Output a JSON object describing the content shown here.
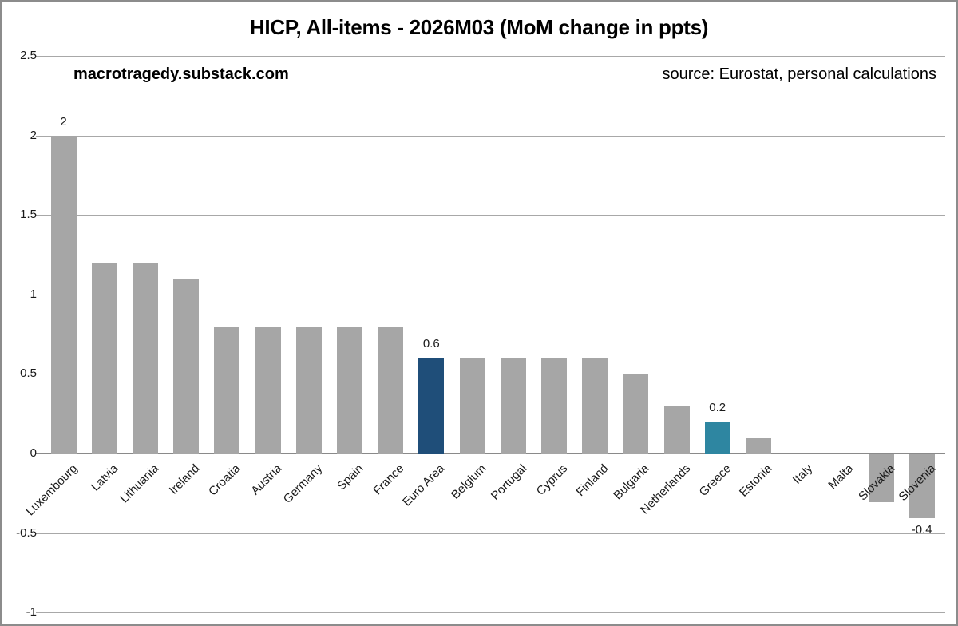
{
  "title": "HICP, All-items - 2026M03 (MoM change in ppts)",
  "watermark": "macrotragedy.substack.com",
  "source": "source: Eurostat, personal calculations",
  "colors": {
    "bar_default": "#a6a6a6",
    "bar_euro_area": "#1f4e79",
    "bar_greece": "#2e86a1",
    "gridline": "#a8a8a8",
    "zero_axis": "#8a8a8a"
  },
  "chart_data": {
    "type": "bar",
    "title": "HICP, All-items - 2026M03 (MoM change in ppts)",
    "xlabel": "",
    "ylabel": "",
    "categories": [
      "Luxembourg",
      "Latvia",
      "Lithuania",
      "Ireland",
      "Croatia",
      "Austria",
      "Germany",
      "Spain",
      "France",
      "Euro Area",
      "Belgium",
      "Portugal",
      "Cyprus",
      "Finland",
      "Bulgaria",
      "Netherlands",
      "Greece",
      "Estonia",
      "Italy",
      "Malta",
      "Slovakia",
      "Slovenia"
    ],
    "values": [
      2.0,
      1.2,
      1.2,
      1.1,
      0.8,
      0.8,
      0.8,
      0.8,
      0.8,
      0.6,
      0.6,
      0.6,
      0.6,
      0.6,
      0.5,
      0.3,
      0.2,
      0.1,
      0.0,
      0.0,
      -0.3,
      -0.4
    ],
    "highlighted_bars": [
      {
        "index": 9,
        "category": "Euro Area",
        "color": "#1f4e79"
      },
      {
        "index": 16,
        "category": "Greece",
        "color": "#2e86a1"
      }
    ],
    "data_labels": [
      {
        "index": 0,
        "text": "2"
      },
      {
        "index": 9,
        "text": "0.6"
      },
      {
        "index": 16,
        "text": "0.2"
      },
      {
        "index": 21,
        "text": "-0.4"
      }
    ],
    "y_ticks": [
      2.5,
      2,
      1.5,
      1,
      0.5,
      0,
      -0.5,
      -1
    ],
    "ylim": [
      -1,
      2.5
    ],
    "grid": true,
    "legend": false
  }
}
